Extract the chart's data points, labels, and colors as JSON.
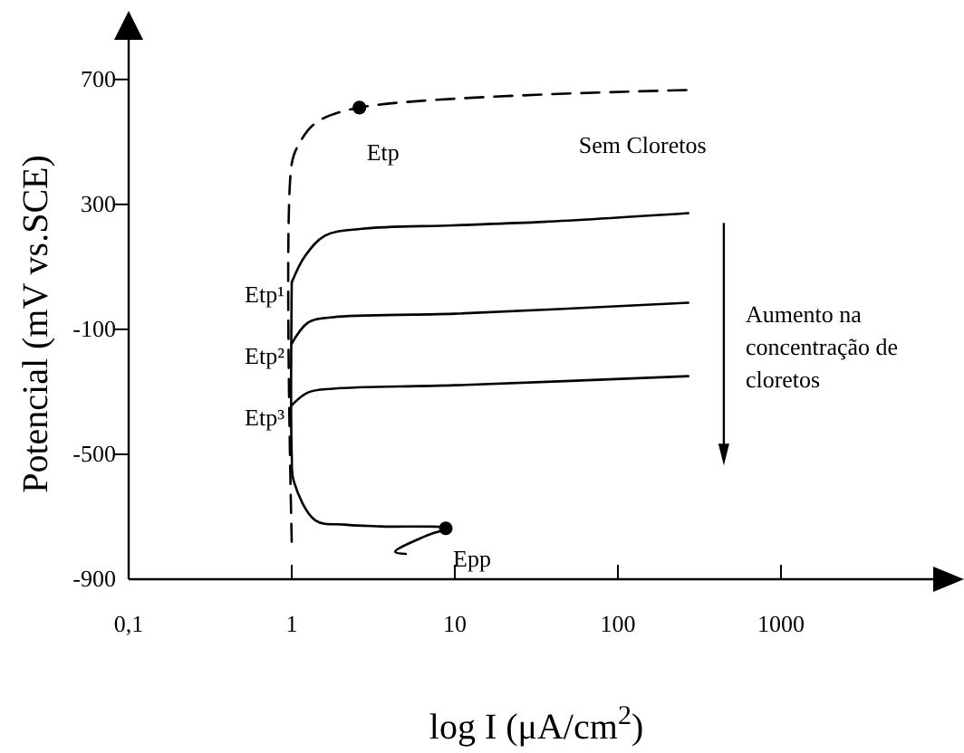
{
  "chart_data": {
    "type": "line",
    "xlabel": "log I (μA/cm$^{2}$)",
    "ylabel": "Potencial (mV vs.SCE)",
    "log": "x",
    "xlim": [
      0.1,
      10000
    ],
    "ylim": [
      -900,
      850
    ],
    "xticks": [
      {
        "value": 0.1,
        "label": "0,1"
      },
      1,
      10,
      100,
      1000
    ],
    "yticks": [
      -900,
      -500,
      -100,
      300,
      700
    ],
    "grid": false,
    "series": [
      {
        "line_style": "dashed",
        "color": "#000000",
        "x": [
          1,
          1,
          1.1,
          1.4,
          2.6,
          270
        ],
        "values": [
          -780,
          430,
          490,
          560,
          610,
          666
        ]
      },
      {
        "line_style": "solid",
        "color": "#000000",
        "x": [
          1,
          1.2,
          1.6,
          2.7,
          9.8,
          35,
          270
        ],
        "values": [
          50,
          133,
          200,
          222,
          233,
          244,
          272
        ]
      },
      {
        "line_style": "solid",
        "color": "#000000",
        "x": [
          1,
          1.26,
          1.8,
          10,
          270
        ],
        "values": [
          -146,
          -78,
          -61,
          -50,
          -15
        ]
      },
      {
        "line_style": "solid",
        "color": "#000000",
        "x": [
          1,
          1.26,
          1.8,
          10,
          270
        ],
        "values": [
          -343,
          -302,
          -290,
          -279,
          -250
        ]
      },
      {
        "line_style": "solid",
        "color": "#000000",
        "x": [
          1,
          1,
          1.03,
          1.4,
          2.1,
          3.5,
          8.8,
          6.6,
          4.3,
          5.0
        ],
        "values": [
          50,
          -500,
          -587,
          -712,
          -725,
          -731,
          -737,
          -762,
          -812,
          -819
        ]
      },
      {
        "type": "scatter",
        "marker": "circle",
        "color": "#000000",
        "x": [
          2.6,
          8.8
        ],
        "values": [
          610,
          -737
        ]
      }
    ],
    "annotations": [
      {
        "text": "Etp",
        "x": 2.6,
        "y": 610
      },
      {
        "text": "Etp¹",
        "x": 1,
        "y": 50
      },
      {
        "text": "Etp²",
        "x": 1,
        "y": -146
      },
      {
        "text": "Etp³",
        "x": 1,
        "y": -343
      },
      {
        "text": "Epp",
        "x": 8.8,
        "y": -737
      },
      {
        "text": "Sem Cloretos",
        "x": 270,
        "y": 666
      },
      "Aumento na concentração de cloretos"
    ]
  }
}
